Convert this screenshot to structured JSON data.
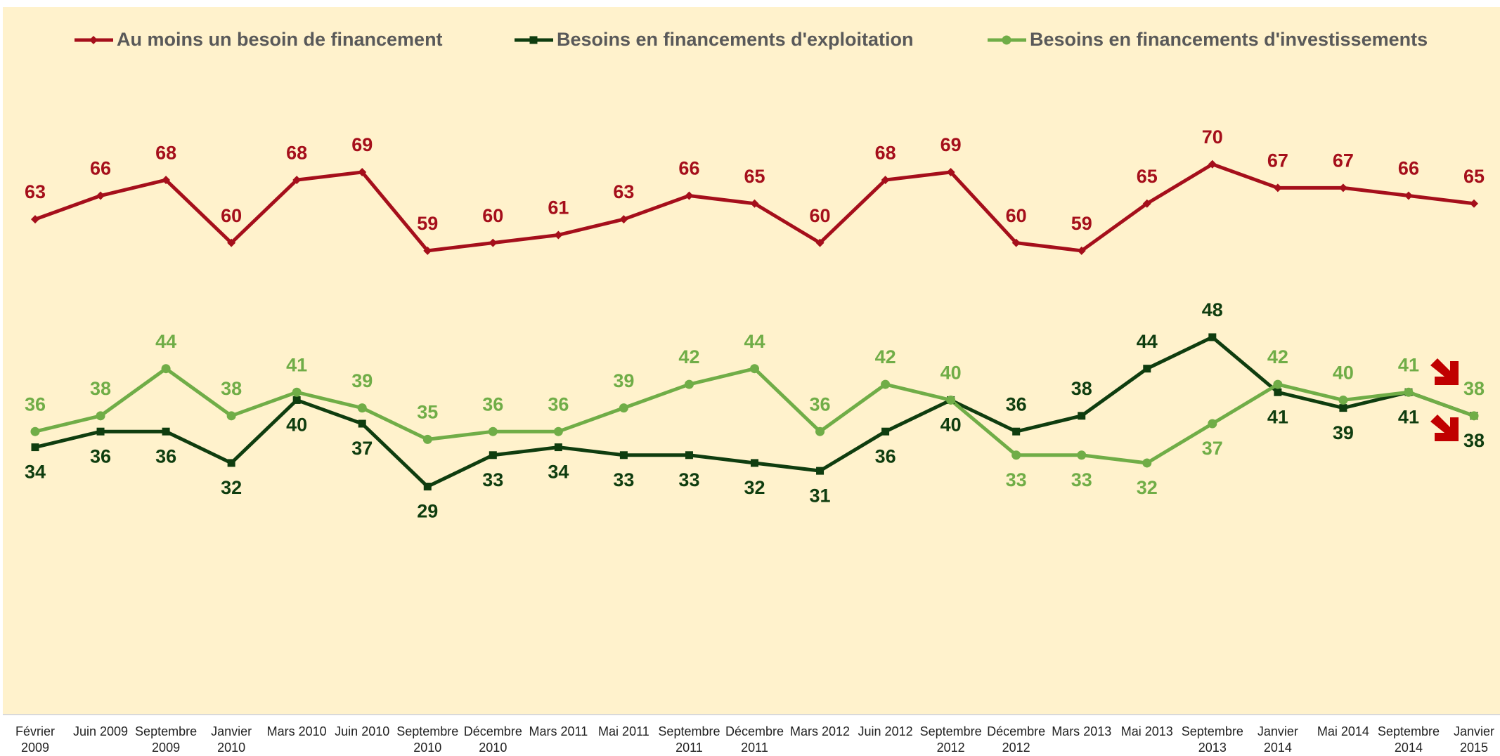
{
  "chart_data": {
    "type": "line",
    "categories": [
      "Février 2009",
      "Juin 2009",
      "Septembre 2009",
      "Janvier 2010",
      "Mars 2010",
      "Juin 2010",
      "Septembre 2010",
      "Décembre 2010",
      "Mars 2011",
      "Mai 2011",
      "Septembre 2011",
      "Décembre 2011",
      "Mars 2012",
      "Juin 2012",
      "Septembre 2012",
      "Décembre 2012",
      "Mars 2013",
      "Mai 2013",
      "Septembre 2013",
      "Janvier 2014",
      "Mai 2014",
      "Septembre 2014",
      "Janvier 2015"
    ],
    "series": [
      {
        "name": "Au moins un besoin de financement",
        "color": "#a50f1b",
        "marker": "diamond",
        "values": [
          63,
          66,
          68,
          60,
          68,
          69,
          59,
          60,
          61,
          63,
          66,
          65,
          60,
          68,
          69,
          60,
          59,
          65,
          70,
          67,
          67,
          66,
          65
        ]
      },
      {
        "name": "Besoins en financements d'exploitation",
        "color": "#0f3d0f",
        "marker": "square",
        "values": [
          34,
          36,
          36,
          32,
          40,
          37,
          29,
          33,
          34,
          33,
          33,
          32,
          31,
          36,
          40,
          36,
          38,
          44,
          48,
          41,
          39,
          41,
          38
        ]
      },
      {
        "name": "Besoins en financements d'investissements",
        "color": "#70ad47",
        "marker": "circle",
        "values": [
          36,
          38,
          44,
          38,
          41,
          39,
          35,
          36,
          36,
          39,
          42,
          44,
          36,
          42,
          40,
          33,
          33,
          32,
          37,
          42,
          40,
          41,
          38
        ]
      }
    ],
    "ylim": [
      0,
      90
    ],
    "legend": "top"
  }
}
